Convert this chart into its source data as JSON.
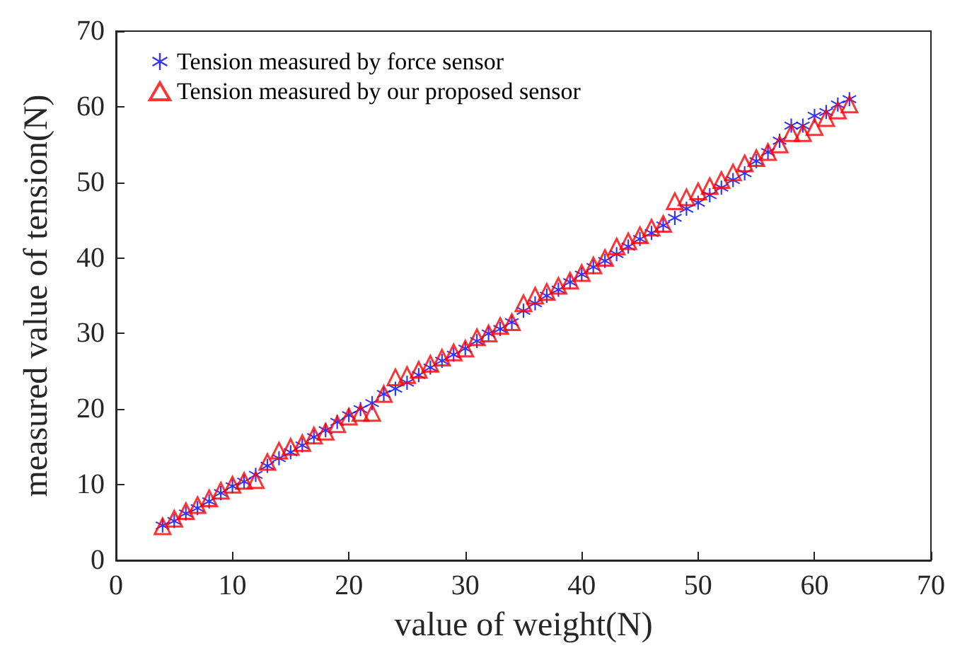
{
  "chart_data": {
    "type": "scatter",
    "xlabel": "value of weight(N)",
    "ylabel": "measured value of tension(N)",
    "x": [
      4,
      5,
      6,
      7,
      8,
      9,
      10,
      11,
      12,
      13,
      14,
      15,
      16,
      17,
      18,
      19,
      20,
      21,
      22,
      23,
      24,
      25,
      26,
      27,
      28,
      29,
      30,
      31,
      32,
      33,
      34,
      35,
      36,
      37,
      38,
      39,
      40,
      41,
      42,
      43,
      44,
      45,
      46,
      47,
      48,
      49,
      50,
      51,
      52,
      53,
      54,
      55,
      56,
      57,
      58,
      59,
      60,
      61,
      62,
      63
    ],
    "series": [
      {
        "name": "Tension measured by force sensor",
        "color": "#0000ff",
        "marker": "star",
        "values": [
          4.6,
          5.2,
          6.2,
          6.9,
          7.8,
          8.9,
          9.8,
          10.4,
          11.3,
          12.5,
          13.5,
          14.3,
          15.2,
          16.3,
          17.2,
          18.3,
          19.2,
          20,
          20.8,
          22,
          22.7,
          23.5,
          24.5,
          25.5,
          26.4,
          27.2,
          28,
          29,
          30,
          30.6,
          31.5,
          33,
          34,
          35,
          35.8,
          36.8,
          37.8,
          38.8,
          39.6,
          40.5,
          41.5,
          42.5,
          43.3,
          44.3,
          45.3,
          46.5,
          47.3,
          48.3,
          49.3,
          50.3,
          51.2,
          52.8,
          54,
          55.5,
          57.5,
          57.5,
          58.8,
          59.3,
          60.3,
          61
        ]
      },
      {
        "name": "Tension measured by our proposed sensor",
        "color": "#ff0000",
        "marker": "triangle",
        "values": [
          4.5,
          5.5,
          6.5,
          7.3,
          8.2,
          9.2,
          10,
          10.5,
          10.6,
          13,
          14.5,
          15,
          15.5,
          16.5,
          17,
          18,
          19,
          19.5,
          19.5,
          22,
          24.2,
          24.5,
          25.2,
          26,
          26.8,
          27.5,
          28,
          29.5,
          30,
          31,
          31.5,
          34,
          35,
          35.5,
          36.3,
          37,
          38,
          39,
          40,
          41.5,
          42.2,
          43,
          44,
          44.5,
          47.5,
          48,
          48.8,
          49.5,
          50.3,
          51.3,
          52.5,
          53.2,
          54,
          55,
          56.5,
          56.5,
          57.3,
          58.5,
          59.5,
          60.3
        ]
      }
    ],
    "xlim": [
      0,
      70
    ],
    "xticks": [
      0,
      10,
      20,
      30,
      40,
      50,
      60,
      70
    ],
    "ylim": [
      0,
      70
    ],
    "yticks": [
      0,
      10,
      20,
      30,
      40,
      50,
      60,
      70
    ],
    "grid": false,
    "legend": "top left"
  }
}
